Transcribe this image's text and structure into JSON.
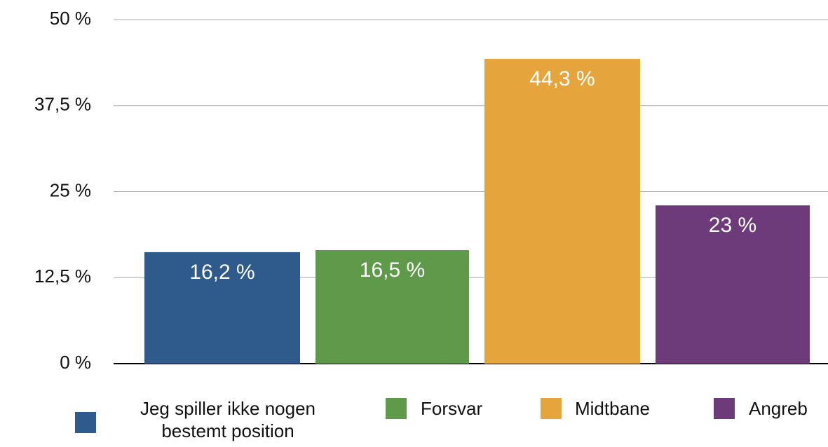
{
  "chart_data": {
    "type": "bar",
    "ylim": [
      0,
      50
    ],
    "yticks": [
      {
        "value": 0,
        "label": "0 %"
      },
      {
        "value": 12.5,
        "label": "12,5 %"
      },
      {
        "value": 25,
        "label": "25 %"
      },
      {
        "value": 37.5,
        "label": "37,5 %"
      },
      {
        "value": 50,
        "label": "50 %"
      }
    ],
    "grid": true,
    "legend": "bottom",
    "series": [
      {
        "name": "Jeg spiller ikke nogen bestemt position",
        "color": "#2e5a8c",
        "values": [
          16.2
        ],
        "value_labels": [
          "16,2 %"
        ]
      },
      {
        "name": "Forsvar",
        "color": "#5e9a4a",
        "values": [
          16.5
        ],
        "value_labels": [
          "16,5 %"
        ]
      },
      {
        "name": "Midtbane",
        "color": "#e6a43c",
        "values": [
          44.3
        ],
        "value_labels": [
          "44,3 %"
        ]
      },
      {
        "name": "Angreb",
        "color": "#6e3b7a",
        "values": [
          23
        ],
        "value_labels": [
          "23 %"
        ]
      }
    ]
  }
}
